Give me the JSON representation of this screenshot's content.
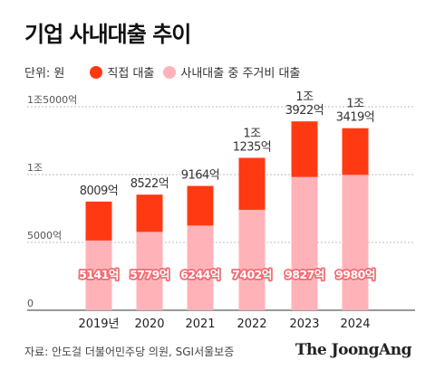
{
  "header": {
    "title": "기업 사내대출 추이",
    "unit_label": "단위: 원"
  },
  "legend": {
    "items": [
      {
        "label": "직접 대출",
        "color": "#ff3a12"
      },
      {
        "label": "사내대출 중 주거비 대출",
        "color": "#ffb3b8"
      }
    ]
  },
  "colors": {
    "total_bar": "#ff3a12",
    "housing_bar": "#ffb3b8",
    "housing_label_bg": "#f26a72",
    "grid": "#bdbdbd",
    "axis": "#333333"
  },
  "chart_data": {
    "type": "bar",
    "categories": [
      "2019년",
      "2020",
      "2021",
      "2022",
      "2023",
      "2024"
    ],
    "series": [
      {
        "name": "직접 대출",
        "values": [
          8009,
          8522,
          9164,
          11235,
          13922,
          13419
        ]
      },
      {
        "name": "사내대출 중 주거비 대출",
        "values": [
          5141,
          5779,
          6244,
          7402,
          9827,
          9980
        ]
      }
    ],
    "total_labels": [
      "8009억",
      "8522억",
      "9164억",
      "1조\n1235억",
      "1조\n3922억",
      "1조\n3419억"
    ],
    "housing_labels": [
      "5141억",
      "5779억",
      "6244억",
      "7402억",
      "9827억",
      "9980억"
    ],
    "yticks": [
      {
        "value": 0,
        "label": "0"
      },
      {
        "value": 5000,
        "label": "5000억"
      },
      {
        "value": 10000,
        "label": "1조"
      },
      {
        "value": 15000,
        "label": "1조5000억"
      }
    ],
    "ylim": [
      0,
      15000
    ],
    "grid": true,
    "legend_position": "top-left",
    "unit": "억원"
  },
  "footer": {
    "source": "자료: 안도걸 더불어민주당 의원, SGI서울보증",
    "logo": "The JoongAng"
  }
}
